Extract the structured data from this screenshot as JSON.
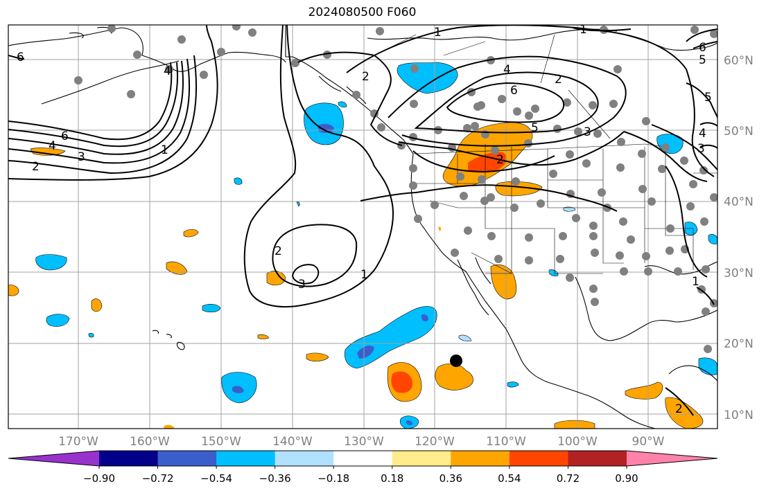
{
  "title": "2024080500 F060",
  "map": {
    "lat_labels": [
      "60°N",
      "50°N",
      "40°N",
      "30°N",
      "20°N",
      "10°N"
    ],
    "lon_labels": [
      "170°W",
      "160°W",
      "150°W",
      "140°W",
      "130°W",
      "120°W",
      "110°W",
      "100°W",
      "90°W"
    ]
  },
  "colorbar": {
    "ticks": [
      "−0.90",
      "−0.72",
      "−0.54",
      "−0.36",
      "−0.18",
      "0.18",
      "0.36",
      "0.54",
      "0.72",
      "0.90"
    ],
    "colors": [
      "#9932cc",
      "#00008b",
      "#3a5fcd",
      "#00bfff",
      "#b0e2ff",
      "#ffffff",
      "#ffec8b",
      "#ffa500",
      "#ff4500",
      "#b22222",
      "#ff82ab"
    ]
  },
  "contour_labels": [
    "1",
    "2",
    "3",
    "4",
    "5",
    "6"
  ],
  "colors": {
    "contour": "#000000",
    "grid": "#a0a0a0",
    "station": "#808080",
    "storm_center": "#000000"
  }
}
